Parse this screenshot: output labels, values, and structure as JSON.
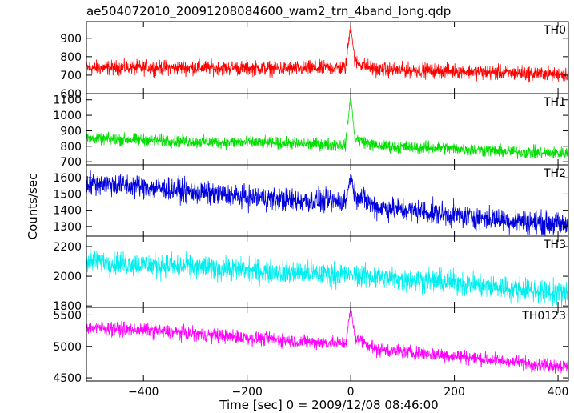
{
  "chart_data": {
    "type": "line",
    "title": "ae504072010_20091208084600_wam2_trn_4band_long.qdp",
    "xlabel": "Time [sec] 0 = 2009/12/08 08:46:00",
    "ylabel": "Counts/sec",
    "xlim": [
      -510,
      420
    ],
    "x_ticks": [
      -400,
      -200,
      0,
      200,
      400
    ],
    "x_tick_labels": [
      "−400",
      "−200",
      "0",
      "200",
      "400"
    ],
    "grid": false,
    "panels": [
      {
        "name": "TH0",
        "color": "#ff0000",
        "ylim": [
          600,
          990
        ],
        "y_ticks": [
          600,
          700,
          800,
          900
        ],
        "series": [
          {
            "x": -510,
            "y": 740
          },
          {
            "x": -400,
            "y": 740
          },
          {
            "x": -300,
            "y": 742
          },
          {
            "x": -200,
            "y": 738
          },
          {
            "x": -100,
            "y": 735
          },
          {
            "x": -10,
            "y": 740
          },
          {
            "x": 0,
            "y": 975
          },
          {
            "x": 8,
            "y": 770
          },
          {
            "x": 50,
            "y": 730
          },
          {
            "x": 200,
            "y": 722
          },
          {
            "x": 300,
            "y": 712
          },
          {
            "x": 420,
            "y": 705
          }
        ],
        "noise": 40
      },
      {
        "name": "TH1",
        "color": "#00e000",
        "ylim": [
          680,
          1140
        ],
        "y_ticks": [
          700,
          800,
          900,
          1000,
          1100
        ],
        "series": [
          {
            "x": -510,
            "y": 850
          },
          {
            "x": -400,
            "y": 840
          },
          {
            "x": -300,
            "y": 828
          },
          {
            "x": -200,
            "y": 825
          },
          {
            "x": -100,
            "y": 815
          },
          {
            "x": -10,
            "y": 810
          },
          {
            "x": 0,
            "y": 1125
          },
          {
            "x": 8,
            "y": 850
          },
          {
            "x": 50,
            "y": 800
          },
          {
            "x": 200,
            "y": 785
          },
          {
            "x": 300,
            "y": 765
          },
          {
            "x": 420,
            "y": 755
          }
        ],
        "noise": 40
      },
      {
        "name": "TH2",
        "color": "#0000dd",
        "ylim": [
          1240,
          1680
        ],
        "y_ticks": [
          1300,
          1400,
          1500,
          1600
        ],
        "series": [
          {
            "x": -510,
            "y": 1570
          },
          {
            "x": -400,
            "y": 1545
          },
          {
            "x": -300,
            "y": 1510
          },
          {
            "x": -200,
            "y": 1480
          },
          {
            "x": -100,
            "y": 1460
          },
          {
            "x": -10,
            "y": 1450
          },
          {
            "x": 0,
            "y": 1610
          },
          {
            "x": 8,
            "y": 1500
          },
          {
            "x": 50,
            "y": 1420
          },
          {
            "x": 200,
            "y": 1370
          },
          {
            "x": 300,
            "y": 1340
          },
          {
            "x": 420,
            "y": 1310
          }
        ],
        "noise": 70
      },
      {
        "name": "TH3",
        "color": "#00eeee",
        "ylim": [
          1790,
          2270
        ],
        "y_ticks": [
          1800,
          2000,
          2200
        ],
        "series": [
          {
            "x": -510,
            "y": 2100
          },
          {
            "x": -400,
            "y": 2080
          },
          {
            "x": -300,
            "y": 2060
          },
          {
            "x": -200,
            "y": 2040
          },
          {
            "x": -100,
            "y": 2020
          },
          {
            "x": -10,
            "y": 2010
          },
          {
            "x": 0,
            "y": 2010
          },
          {
            "x": 100,
            "y": 1980
          },
          {
            "x": 200,
            "y": 1960
          },
          {
            "x": 300,
            "y": 1920
          },
          {
            "x": 420,
            "y": 1880
          }
        ],
        "noise": 80
      },
      {
        "name": "TH0123",
        "color": "#ff00ff",
        "ylim": [
          4450,
          5620
        ],
        "y_ticks": [
          4500,
          5000,
          5500
        ],
        "series": [
          {
            "x": -510,
            "y": 5300
          },
          {
            "x": -400,
            "y": 5260
          },
          {
            "x": -300,
            "y": 5200
          },
          {
            "x": -200,
            "y": 5140
          },
          {
            "x": -100,
            "y": 5080
          },
          {
            "x": -10,
            "y": 5050
          },
          {
            "x": 0,
            "y": 5600
          },
          {
            "x": 8,
            "y": 5150
          },
          {
            "x": 50,
            "y": 4950
          },
          {
            "x": 200,
            "y": 4850
          },
          {
            "x": 300,
            "y": 4760
          },
          {
            "x": 420,
            "y": 4680
          }
        ],
        "noise": 110
      }
    ]
  }
}
